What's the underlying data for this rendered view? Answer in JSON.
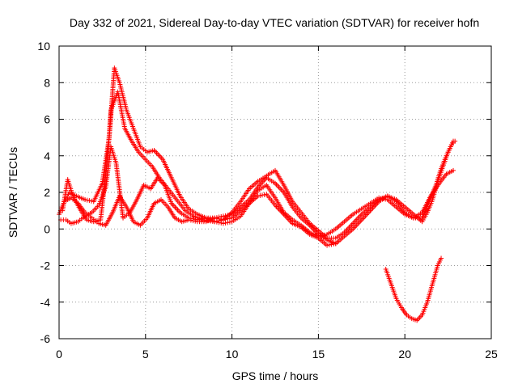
{
  "chart_data": {
    "type": "scatter",
    "title": "Day 332 of 2021, Sidereal Day-to-day VTEC variation (SDTVAR) for receiver hofn",
    "xlabel": "GPS time / hours",
    "ylabel": "SDTVAR / TECUs",
    "xlim": [
      0,
      25
    ],
    "ylim": [
      -6,
      10
    ],
    "xticks": [
      "0",
      "5",
      "10",
      "15",
      "20",
      "25"
    ],
    "yticks": [
      "-6",
      "-4",
      "-2",
      "0",
      "2",
      "4",
      "6",
      "8",
      "10"
    ],
    "grid": true,
    "marker": "+",
    "series_color": "#ff0000",
    "series": [
      {
        "name": "track-a",
        "x": [
          0.0,
          0.3,
          0.6,
          1.0,
          1.5,
          2.0,
          2.5,
          2.9,
          3.2,
          3.5,
          3.9,
          4.3,
          4.7,
          5.1,
          5.5,
          6.0,
          6.5,
          7.0,
          7.5,
          8.0,
          8.5,
          9.0,
          9.5,
          10.0,
          10.5,
          11.0,
          11.5,
          12.0,
          12.5,
          13.0,
          13.5,
          14.0,
          14.5,
          15.0,
          15.5,
          16.0,
          16.5,
          17.0,
          17.5,
          18.0,
          18.5,
          19.0,
          19.5,
          20.0,
          20.5,
          21.0,
          21.3,
          21.6,
          21.9,
          22.2,
          22.5,
          22.8
        ],
        "y": [
          0.8,
          1.5,
          2.0,
          1.8,
          1.6,
          1.5,
          2.5,
          5.0,
          8.8,
          8.0,
          6.5,
          5.5,
          4.5,
          4.2,
          4.3,
          3.8,
          2.8,
          1.8,
          1.1,
          0.8,
          0.6,
          0.6,
          0.7,
          0.8,
          1.2,
          1.6,
          2.3,
          2.8,
          2.5,
          2.0,
          1.2,
          0.6,
          0.2,
          -0.3,
          -0.6,
          -0.8,
          -0.4,
          0.0,
          0.5,
          1.0,
          1.5,
          1.8,
          1.6,
          1.2,
          0.8,
          0.4,
          0.9,
          1.6,
          2.6,
          3.4,
          4.2,
          4.8
        ]
      },
      {
        "name": "track-b",
        "x": [
          0.2,
          0.5,
          0.8,
          1.2,
          1.6,
          2.0,
          2.4,
          2.8,
          3.0,
          3.4,
          3.8,
          4.2,
          4.6,
          5.0,
          5.4,
          5.8,
          6.3,
          6.8,
          7.3,
          7.8,
          8.3,
          9.0,
          9.5,
          10.0,
          10.5,
          11.0,
          11.5,
          12.0,
          12.5,
          13.0,
          13.5,
          14.0,
          14.5,
          15.0,
          15.5,
          16.0,
          16.5,
          17.0,
          17.5,
          18.0,
          18.5,
          19.0,
          19.5,
          20.0,
          20.5,
          21.0,
          21.4,
          21.8,
          22.1,
          22.4,
          22.7,
          22.9
        ],
        "y": [
          1.0,
          2.7,
          1.8,
          1.1,
          0.5,
          0.4,
          0.5,
          3.8,
          6.5,
          7.5,
          5.5,
          4.8,
          4.2,
          3.8,
          3.4,
          2.8,
          2.2,
          1.6,
          1.0,
          0.7,
          0.5,
          0.4,
          0.5,
          0.9,
          1.5,
          2.2,
          2.6,
          2.9,
          3.2,
          2.4,
          1.5,
          0.9,
          0.3,
          -0.1,
          -0.5,
          -0.5,
          -0.2,
          0.3,
          0.8,
          1.2,
          1.6,
          1.8,
          1.5,
          0.9,
          0.6,
          0.6,
          1.5,
          2.4,
          3.3,
          4.0,
          4.6,
          4.8
        ]
      },
      {
        "name": "track-c",
        "x": [
          0.1,
          0.4,
          0.7,
          1.1,
          1.5,
          1.9,
          2.3,
          2.7,
          3.0,
          3.3,
          3.7,
          4.1,
          4.5,
          4.9,
          5.3,
          5.7,
          6.1,
          6.5,
          7.0,
          7.5,
          8.0,
          8.5,
          9.0,
          9.5,
          10.0,
          10.5,
          11.0,
          11.5,
          12.0,
          12.5,
          13.0,
          13.5,
          14.0,
          14.5,
          15.0,
          15.5,
          16.0,
          16.5,
          17.0,
          17.5,
          18.0,
          18.5,
          19.0,
          19.5,
          20.0,
          20.5,
          21.0,
          21.5,
          22.0,
          22.4,
          22.8
        ],
        "y": [
          0.5,
          0.5,
          0.3,
          0.4,
          0.7,
          0.9,
          1.3,
          2.3,
          4.5,
          3.6,
          0.6,
          0.9,
          1.6,
          2.4,
          2.2,
          2.8,
          2.4,
          1.4,
          0.9,
          0.6,
          0.5,
          0.6,
          0.4,
          0.3,
          0.4,
          0.7,
          1.4,
          2.1,
          2.4,
          1.7,
          0.9,
          0.5,
          0.2,
          -0.2,
          -0.4,
          -0.3,
          0.0,
          0.4,
          0.8,
          1.1,
          1.4,
          1.7,
          1.6,
          1.2,
          0.8,
          0.6,
          0.9,
          1.8,
          2.5,
          3.0,
          3.2
        ]
      },
      {
        "name": "track-d",
        "x": [
          0.3,
          0.7,
          1.1,
          1.5,
          1.9,
          2.3,
          2.7,
          3.1,
          3.5,
          3.9,
          4.3,
          4.7,
          5.1,
          5.5,
          5.9,
          6.3,
          6.7,
          7.1,
          7.5,
          8.0,
          8.5,
          9.0,
          9.5,
          10.0,
          10.5,
          11.0,
          11.5,
          12.0,
          12.5,
          13.0,
          13.5,
          14.0,
          14.5,
          15.0,
          15.5,
          16.0
        ],
        "y": [
          1.5,
          1.7,
          1.4,
          0.9,
          0.6,
          0.3,
          0.2,
          0.9,
          1.8,
          1.2,
          0.4,
          0.2,
          0.6,
          1.4,
          1.6,
          1.2,
          0.6,
          0.4,
          0.5,
          0.4,
          0.4,
          0.6,
          0.5,
          0.6,
          1.0,
          1.4,
          1.8,
          1.9,
          1.3,
          0.8,
          0.3,
          0.1,
          -0.3,
          -0.5,
          -0.9,
          -0.8
        ]
      },
      {
        "name": "track-e",
        "x": [
          18.9,
          19.2,
          19.5,
          19.8,
          20.1,
          20.4,
          20.7,
          21.0,
          21.3,
          21.6,
          21.9,
          22.1
        ],
        "y": [
          -2.2,
          -3.0,
          -3.8,
          -4.3,
          -4.7,
          -4.9,
          -5.0,
          -4.7,
          -4.0,
          -3.0,
          -2.0,
          -1.6
        ]
      }
    ]
  }
}
